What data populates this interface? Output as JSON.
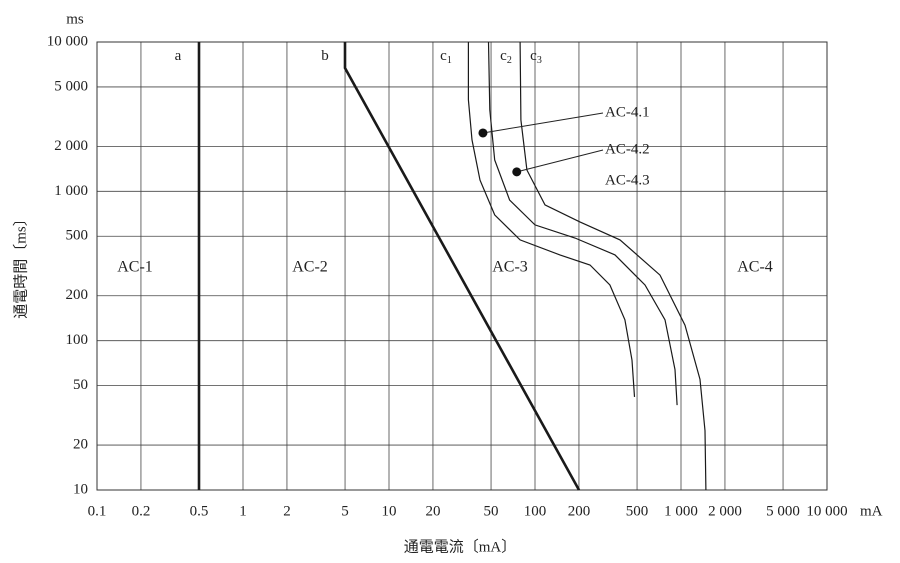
{
  "chart_data": {
    "type": "line",
    "x_label": "通電電流〔mA〕",
    "y_label": "通電時間〔ms〕",
    "x_unit": "mA",
    "y_unit": "ms",
    "log_x": true,
    "log_y": true,
    "grid": true,
    "color": "#1a1a1a",
    "xlim": [
      0.1,
      10000
    ],
    "ylim": [
      10,
      10000
    ],
    "xticks": [
      0.1,
      0.2,
      0.5,
      1,
      2,
      5,
      10,
      20,
      50,
      100,
      200,
      500,
      {
        "value": 1000,
        "label": "1 000"
      },
      {
        "value": 2000,
        "label": "2 000"
      },
      {
        "value": 5000,
        "label": "5 000"
      },
      {
        "value": 10000,
        "label": "10 000"
      }
    ],
    "yticks": [
      10,
      20,
      50,
      100,
      200,
      500,
      {
        "value": 1000,
        "label": "1 000"
      },
      {
        "value": 2000,
        "label": "2 000"
      },
      {
        "value": 5000,
        "label": "5 000"
      },
      {
        "value": 10000,
        "label": "10 000"
      }
    ],
    "series": [
      {
        "name": "a",
        "x": [
          0.5,
          0.5
        ],
        "values": [
          10,
          10000
        ]
      },
      {
        "name": "b",
        "x": [
          5,
          5,
          200
        ],
        "values": [
          10000,
          6700,
          10
        ]
      },
      {
        "name": "c",
        "sub": "1",
        "x": [
          35,
          35,
          37,
          42,
          53,
          79,
          148,
          238,
          326,
          413,
          462,
          480
        ],
        "values": [
          10000,
          4100,
          2210,
          1190,
          695,
          473,
          375,
          321,
          236,
          138,
          74,
          42
        ]
      },
      {
        "name": "c",
        "sub": "2",
        "x": [
          48,
          49,
          53,
          67,
          100,
          188,
          353,
          567,
          777,
          910,
          940
        ],
        "values": [
          10000,
          3510,
          1620,
          875,
          596,
          487,
          375,
          236,
          138,
          64,
          37
        ]
      },
      {
        "name": "c",
        "sub": "3",
        "x": [
          79,
          80,
          88,
          117,
          203,
          382,
          718,
          1065,
          1349,
          1460,
          1480
        ],
        "values": [
          10000,
          3010,
          1390,
          811,
          624,
          473,
          275,
          127,
          55,
          25,
          10
        ]
      }
    ],
    "zones": [
      "AC-1",
      "AC-2",
      "AC-3",
      "AC-4"
    ],
    "annotations": [
      {
        "label": "AC-4.1",
        "x": 44,
        "y": 2460
      },
      {
        "label": "AC-4.2",
        "x": 75,
        "y": 1350
      },
      {
        "label": "AC-4.3"
      }
    ]
  }
}
